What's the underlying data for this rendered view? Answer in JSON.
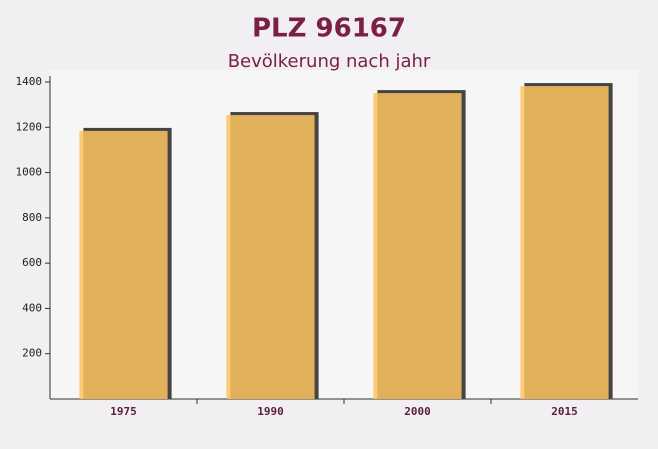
{
  "chart_data": {
    "type": "bar",
    "title": "PLZ 96167",
    "subtitle": "Bevölkerung nach jahr",
    "categories": [
      "1975",
      "1990",
      "2000",
      "2015"
    ],
    "values": [
      1184,
      1254,
      1351,
      1382
    ],
    "color": "#fcc35e",
    "ylim": [
      0,
      1400
    ],
    "yticks": [
      200,
      400,
      600,
      800,
      1000,
      1200,
      1400
    ]
  }
}
